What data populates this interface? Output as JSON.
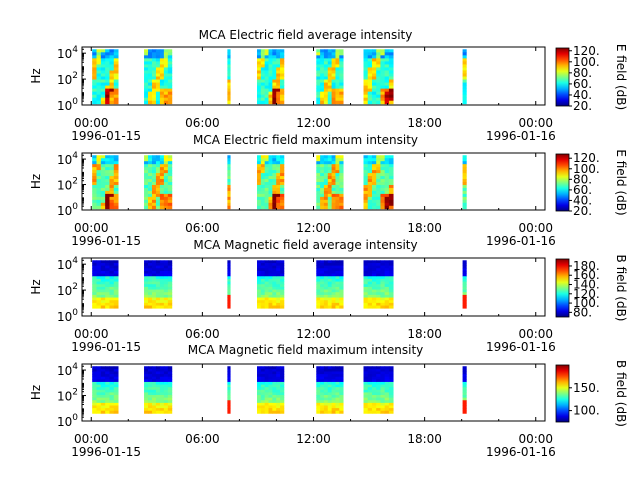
{
  "chart_data": [
    {
      "type": "heatmap",
      "title": "MCA  Electric field average intensity",
      "ylabel": "Hz",
      "y_scale": "log",
      "ylim": [
        1,
        30000
      ],
      "y_ticks": [
        {
          "value": 1,
          "base": "10",
          "exp": "0"
        },
        {
          "value": 100,
          "base": "10",
          "exp": "2"
        },
        {
          "value": 10000,
          "base": "10",
          "exp": "4"
        }
      ],
      "x_ticks": [
        "00:00",
        "06:00",
        "12:00",
        "18:00",
        "00:00"
      ],
      "x_tick_hours": [
        0,
        6,
        12,
        18,
        24
      ],
      "xlim_hours": [
        -0.5,
        24.5
      ],
      "date_start": "1996-01-15",
      "date_end": "1996-01-16",
      "colorbar": {
        "label": "E field (dB)",
        "range": [
          20,
          125
        ],
        "ticks": [
          20,
          40,
          60,
          80,
          100,
          120
        ],
        "tick_labels": [
          "20.",
          "40.",
          "60.",
          "80.",
          "100.",
          "120."
        ]
      },
      "colormap": "jet",
      "data_intervals_hours": [
        [
          0.05,
          1.45
        ],
        [
          2.85,
          4.35
        ],
        [
          7.35,
          7.5
        ],
        [
          8.95,
          10.4
        ],
        [
          12.15,
          13.6
        ],
        [
          14.7,
          16.3
        ],
        [
          20.05,
          20.25
        ]
      ]
    },
    {
      "type": "heatmap",
      "title": "MCA  Electric field maximum intensity",
      "ylabel": "Hz",
      "y_scale": "log",
      "ylim": [
        1,
        30000
      ],
      "y_ticks": [
        {
          "value": 1,
          "base": "10",
          "exp": "0"
        },
        {
          "value": 100,
          "base": "10",
          "exp": "2"
        },
        {
          "value": 10000,
          "base": "10",
          "exp": "4"
        }
      ],
      "x_ticks": [
        "00:00",
        "06:00",
        "12:00",
        "18:00",
        "00:00"
      ],
      "x_tick_hours": [
        0,
        6,
        12,
        18,
        24
      ],
      "xlim_hours": [
        -0.5,
        24.5
      ],
      "date_start": "1996-01-15",
      "date_end": "1996-01-16",
      "colorbar": {
        "label": "E field (dB)",
        "range": [
          20,
          128
        ],
        "ticks": [
          20,
          40,
          60,
          80,
          100,
          120
        ],
        "tick_labels": [
          "20.",
          "40.",
          "60.",
          "80.",
          "100.",
          "120."
        ]
      },
      "colormap": "jet",
      "data_intervals_hours": [
        [
          0.05,
          1.45
        ],
        [
          2.85,
          4.35
        ],
        [
          7.35,
          7.5
        ],
        [
          8.95,
          10.4
        ],
        [
          12.15,
          13.6
        ],
        [
          14.7,
          16.3
        ],
        [
          20.05,
          20.25
        ]
      ]
    },
    {
      "type": "heatmap",
      "title": "MCA  Magnetic field average intensity",
      "ylabel": "Hz",
      "y_scale": "log",
      "ylim": [
        1,
        30000
      ],
      "y_ticks": [
        {
          "value": 1,
          "base": "10",
          "exp": "0"
        },
        {
          "value": 100,
          "base": "10",
          "exp": "2"
        },
        {
          "value": 10000,
          "base": "10",
          "exp": "4"
        }
      ],
      "x_ticks": [
        "00:00",
        "06:00",
        "12:00",
        "18:00",
        "00:00"
      ],
      "x_tick_hours": [
        0,
        6,
        12,
        18,
        24
      ],
      "xlim_hours": [
        -0.5,
        24.5
      ],
      "date_start": "1996-01-15",
      "date_end": "1996-01-16",
      "colorbar": {
        "label": "B field (dB)",
        "range": [
          70,
          195
        ],
        "ticks": [
          80,
          100,
          120,
          140,
          160,
          180
        ],
        "tick_labels": [
          "80.",
          "100.",
          "120.",
          "140.",
          "160.",
          "180."
        ]
      },
      "colormap": "jet",
      "data_intervals_hours": [
        [
          0.05,
          1.45
        ],
        [
          2.85,
          4.35
        ],
        [
          7.35,
          7.5
        ],
        [
          8.95,
          10.4
        ],
        [
          12.15,
          13.6
        ],
        [
          14.7,
          16.3
        ],
        [
          20.05,
          20.25
        ]
      ]
    },
    {
      "type": "heatmap",
      "title": "MCA  Magnetic field maximum intensity",
      "ylabel": "Hz",
      "y_scale": "log",
      "ylim": [
        1,
        30000
      ],
      "y_ticks": [
        {
          "value": 1,
          "base": "10",
          "exp": "0"
        },
        {
          "value": 100,
          "base": "10",
          "exp": "2"
        },
        {
          "value": 10000,
          "base": "10",
          "exp": "4"
        }
      ],
      "x_ticks": [
        "00:00",
        "06:00",
        "12:00",
        "18:00",
        "00:00"
      ],
      "x_tick_hours": [
        0,
        6,
        12,
        18,
        24
      ],
      "xlim_hours": [
        -0.5,
        24.5
      ],
      "date_start": "1996-01-15",
      "date_end": "1996-01-16",
      "colorbar": {
        "label": "B field (dB)",
        "range": [
          75,
          200
        ],
        "ticks": [
          100,
          150
        ],
        "tick_labels": [
          "100.",
          "150."
        ]
      },
      "colormap": "jet",
      "data_intervals_hours": [
        [
          0.05,
          1.45
        ],
        [
          2.85,
          4.35
        ],
        [
          7.35,
          7.5
        ],
        [
          8.95,
          10.4
        ],
        [
          12.15,
          13.6
        ],
        [
          14.7,
          16.3
        ],
        [
          20.05,
          20.25
        ]
      ]
    }
  ]
}
